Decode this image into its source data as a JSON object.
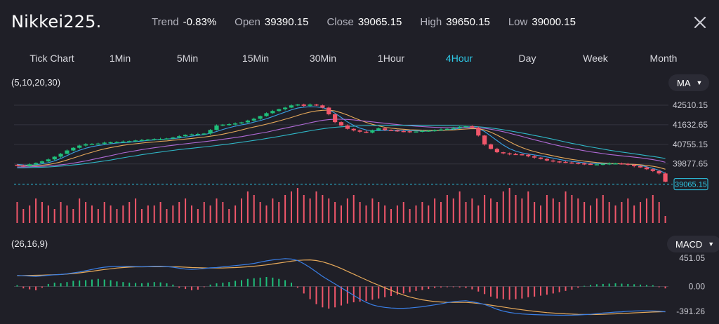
{
  "header": {
    "symbol": "Nikkei225.",
    "stats": [
      {
        "label": "Trend",
        "value": "-0.83%"
      },
      {
        "label": "Open",
        "value": "39390.15"
      },
      {
        "label": "Close",
        "value": "39065.15"
      },
      {
        "label": "High",
        "value": "39650.15"
      },
      {
        "label": "Low",
        "value": "39000.15"
      }
    ]
  },
  "tabs": [
    "Tick Chart",
    "1Min",
    "5Min",
    "15Min",
    "30Min",
    "1Hour",
    "4Hour",
    "Day",
    "Week",
    "Month"
  ],
  "active_tab": "4Hour",
  "ma_indicator": {
    "params": "(5,10,20,30)",
    "dropdown": "MA"
  },
  "macd_indicator": {
    "params": "(26,16,9)",
    "dropdown": "MACD"
  },
  "colors": {
    "up": "#1fbf7a",
    "down": "#f0566a",
    "accent": "#2ec8e6",
    "background": "#1f1f27"
  },
  "chart_data": [
    {
      "type": "candlestick",
      "price_axis_ticks": [
        "42510.15",
        "41632.65",
        "40755.15",
        "39877.65"
      ],
      "current_price_label": "39065.15",
      "ylim": [
        38800,
        43200
      ],
      "close_series": [
        39810,
        39780,
        39860,
        39920,
        39990,
        40080,
        40200,
        40330,
        40480,
        40600,
        40700,
        40760,
        40780,
        40790,
        40830,
        40850,
        40860,
        40880,
        40900,
        40930,
        40950,
        40970,
        40990,
        41000,
        41020,
        41060,
        41120,
        41180,
        41200,
        41220,
        41240,
        41400,
        41600,
        41640,
        41660,
        41690,
        41740,
        41820,
        41900,
        42020,
        42150,
        42250,
        42330,
        42400,
        42500,
        42540,
        42480,
        42540,
        42500,
        42400,
        42100,
        41750,
        41600,
        41450,
        41380,
        41320,
        41280,
        41390,
        41470,
        41400,
        41380,
        41350,
        41340,
        41320,
        41330,
        41360,
        41370,
        41390,
        41420,
        41450,
        41500,
        41540,
        41570,
        41500,
        41150,
        40750,
        40550,
        40400,
        40350,
        40320,
        40310,
        40290,
        40220,
        40160,
        40100,
        40030,
        39990,
        39970,
        39940,
        39920,
        39900,
        39880,
        39860,
        39860,
        39880,
        39900,
        39900,
        39880,
        39840,
        39780,
        39720,
        39640,
        39560,
        39450,
        39080
      ],
      "volume": [
        6,
        4,
        5,
        7,
        6,
        5,
        4,
        6,
        5,
        4,
        7,
        6,
        5,
        4,
        6,
        5,
        4,
        5,
        6,
        7,
        4,
        5,
        5,
        6,
        4,
        5,
        6,
        7,
        5,
        4,
        6,
        5,
        7,
        6,
        4,
        5,
        7,
        9,
        8,
        6,
        5,
        7,
        6,
        8,
        9,
        10,
        8,
        7,
        9,
        8,
        7,
        6,
        5,
        7,
        8,
        6,
        5,
        7,
        6,
        5,
        4,
        5,
        6,
        4,
        5,
        6,
        5,
        7,
        6,
        8,
        7,
        9,
        6,
        7,
        5,
        8,
        7,
        6,
        9,
        10,
        8,
        7,
        9,
        6,
        5,
        8,
        7,
        6,
        9,
        8,
        7,
        6,
        5,
        7,
        8,
        6,
        5,
        6,
        7,
        5,
        6,
        7,
        8,
        6,
        2
      ],
      "ma_lines": [
        {
          "name": "MA5",
          "color": "#3aa2e6",
          "values": [
            39860,
            39830,
            39820,
            39840,
            39880,
            39930,
            40010,
            40120,
            40250,
            40380,
            40490,
            40580,
            40650,
            40700,
            40740,
            40780,
            40810,
            40830,
            40850,
            40880,
            40900,
            40930,
            40950,
            40970,
            40990,
            41010,
            41040,
            41080,
            41120,
            41160,
            41190,
            41250,
            41330,
            41420,
            41500,
            41570,
            41630,
            41680,
            41750,
            41820,
            41900,
            42000,
            42100,
            42200,
            42300,
            42380,
            42420,
            42440,
            42430,
            42400,
            42320,
            42150,
            41960,
            41760,
            41600,
            41480,
            41400,
            41360,
            41370,
            41380,
            41390,
            41390,
            41380,
            41370,
            41360,
            41350,
            41350,
            41360,
            41380,
            41400,
            41430,
            41470,
            41510,
            41520,
            41470,
            41330,
            41130,
            40920,
            40720,
            40560,
            40450,
            40370,
            40320,
            40280,
            40240,
            40190,
            40140,
            40080,
            40030,
            39990,
            39960,
            39930,
            39910,
            39890,
            39880,
            39880,
            39880,
            39880,
            39870,
            39850,
            39810,
            39750,
            39680,
            39590,
            39460
          ]
        },
        {
          "name": "MA10",
          "color": "#e6a95a",
          "values": [
            39800,
            39790,
            39790,
            39800,
            39820,
            39850,
            39900,
            39970,
            40050,
            40140,
            40230,
            40320,
            40400,
            40480,
            40550,
            40610,
            40660,
            40710,
            40750,
            40780,
            40810,
            40840,
            40860,
            40890,
            40910,
            40940,
            40960,
            40990,
            41020,
            41050,
            41080,
            41120,
            41160,
            41210,
            41270,
            41330,
            41400,
            41470,
            41530,
            41590,
            41660,
            41730,
            41800,
            41880,
            41960,
            42050,
            42130,
            42200,
            42250,
            42280,
            42290,
            42250,
            42170,
            42070,
            41950,
            41840,
            41740,
            41650,
            41580,
            41520,
            41480,
            41450,
            41430,
            41410,
            41400,
            41390,
            41380,
            41380,
            41380,
            41390,
            41400,
            41420,
            41440,
            41460,
            41450,
            41400,
            41300,
            41170,
            41020,
            40870,
            40730,
            40610,
            40510,
            40430,
            40360,
            40300,
            40240,
            40180,
            40130,
            40080,
            40040,
            40000,
            39970,
            39940,
            39920,
            39900,
            39890,
            39880,
            39870,
            39860,
            39840,
            39810,
            39770,
            39720,
            39640
          ]
        },
        {
          "name": "MA20",
          "color": "#b06ad6",
          "values": [
            39740,
            39740,
            39750,
            39760,
            39770,
            39790,
            39810,
            39840,
            39870,
            39910,
            39960,
            40010,
            40070,
            40130,
            40190,
            40250,
            40310,
            40370,
            40420,
            40470,
            40520,
            40560,
            40600,
            40640,
            40680,
            40710,
            40750,
            40780,
            40810,
            40840,
            40870,
            40910,
            40940,
            40980,
            41020,
            41060,
            41100,
            41150,
            41200,
            41250,
            41300,
            41360,
            41420,
            41480,
            41540,
            41600,
            41660,
            41720,
            41780,
            41830,
            41860,
            41880,
            41880,
            41870,
            41850,
            41820,
            41790,
            41760,
            41730,
            41700,
            41670,
            41640,
            41610,
            41590,
            41570,
            41550,
            41530,
            41520,
            41510,
            41500,
            41500,
            41500,
            41500,
            41500,
            41490,
            41470,
            41430,
            41380,
            41320,
            41250,
            41180,
            41110,
            41030,
            40960,
            40890,
            40820,
            40750,
            40690,
            40630,
            40570,
            40520,
            40470,
            40420,
            40380,
            40340,
            40300,
            40270,
            40240,
            40210,
            40180,
            40150,
            40110,
            40070,
            40020,
            39950
          ]
        },
        {
          "name": "MA30",
          "color": "#2fb8c8",
          "values": [
            39700,
            39700,
            39710,
            39720,
            39730,
            39740,
            39760,
            39780,
            39800,
            39830,
            39860,
            39890,
            39930,
            39970,
            40010,
            40050,
            40100,
            40150,
            40200,
            40240,
            40290,
            40330,
            40370,
            40410,
            40450,
            40480,
            40520,
            40550,
            40580,
            40610,
            40640,
            40670,
            40700,
            40740,
            40770,
            40810,
            40850,
            40890,
            40930,
            40970,
            41020,
            41060,
            41110,
            41160,
            41210,
            41260,
            41310,
            41360,
            41410,
            41450,
            41490,
            41520,
            41540,
            41560,
            41570,
            41580,
            41590,
            41600,
            41600,
            41610,
            41610,
            41610,
            41610,
            41610,
            41610,
            41610,
            41600,
            41600,
            41600,
            41590,
            41590,
            41580,
            41570,
            41560,
            41540,
            41520,
            41490,
            41450,
            41410,
            41360,
            41310,
            41260,
            41210,
            41150,
            41100,
            41040,
            40980,
            40920,
            40860,
            40800,
            40750,
            40690,
            40640,
            40590,
            40540,
            40490,
            40450,
            40410,
            40370,
            40330,
            40290,
            40250,
            40210,
            40170,
            40120
          ]
        }
      ]
    },
    {
      "type": "macd",
      "axis_ticks": [
        "451.05",
        "0.00",
        "-391.26"
      ],
      "ylim": [
        -460,
        560
      ],
      "macd": [
        175,
        170,
        165,
        160,
        168,
        178,
        185,
        190,
        200,
        215,
        230,
        250,
        270,
        290,
        305,
        315,
        320,
        320,
        318,
        315,
        312,
        315,
        320,
        320,
        315,
        305,
        290,
        275,
        270,
        275,
        285,
        295,
        300,
        310,
        320,
        330,
        340,
        350,
        365,
        385,
        405,
        420,
        430,
        440,
        435,
        410,
        360,
        300,
        230,
        160,
        100,
        40,
        -20,
        -80,
        -140,
        -200,
        -250,
        -290,
        -315,
        -330,
        -340,
        -345,
        -345,
        -340,
        -330,
        -320,
        -305,
        -290,
        -275,
        -255,
        -240,
        -230,
        -225,
        -240,
        -260,
        -285,
        -320,
        -360,
        -390,
        -410,
        -425,
        -435,
        -440,
        -445,
        -448,
        -450,
        -452,
        -455,
        -455,
        -453,
        -450,
        -445,
        -440,
        -430,
        -420,
        -412,
        -405,
        -400,
        -392,
        -388,
        -385,
        -385,
        -386,
        -390,
        -400
      ],
      "signal": [
        170,
        172,
        175,
        178,
        180,
        183,
        186,
        190,
        196,
        205,
        215,
        228,
        240,
        255,
        268,
        280,
        292,
        300,
        306,
        310,
        311,
        312,
        313,
        314,
        313,
        312,
        310,
        305,
        300,
        297,
        294,
        292,
        292,
        293,
        296,
        300,
        305,
        312,
        320,
        330,
        342,
        356,
        370,
        385,
        400,
        412,
        418,
        420,
        410,
        390,
        360,
        325,
        285,
        240,
        195,
        150,
        105,
        60,
        20,
        -20,
        -60,
        -100,
        -135,
        -165,
        -190,
        -210,
        -225,
        -238,
        -245,
        -250,
        -252,
        -252,
        -252,
        -258,
        -268,
        -280,
        -295,
        -310,
        -325,
        -340,
        -355,
        -368,
        -380,
        -392,
        -402,
        -412,
        -420,
        -427,
        -432,
        -436,
        -440,
        -442,
        -443,
        -442,
        -440,
        -436,
        -432,
        -427,
        -422,
        -417,
        -412,
        -408,
        -404,
        -400,
        -398
      ],
      "histogram": [
        20,
        -30,
        -45,
        -60,
        -20,
        40,
        60,
        50,
        70,
        90,
        95,
        100,
        110,
        120,
        110,
        100,
        80,
        70,
        60,
        55,
        50,
        60,
        70,
        65,
        50,
        30,
        -20,
        -40,
        -60,
        -50,
        -10,
        30,
        50,
        60,
        70,
        90,
        100,
        120,
        130,
        140,
        150,
        140,
        120,
        100,
        60,
        -20,
        -110,
        -200,
        -280,
        -330,
        -350,
        -330,
        -300,
        -270,
        -250,
        -240,
        -230,
        -210,
        -190,
        -170,
        -150,
        -130,
        -110,
        -90,
        -70,
        -55,
        -40,
        -25,
        -15,
        -10,
        -8,
        -15,
        -25,
        -45,
        -80,
        -120,
        -160,
        -190,
        -200,
        -210,
        -200,
        -190,
        -170,
        -160,
        -145,
        -130,
        -110,
        -90,
        -70,
        -50,
        -20,
        10,
        25,
        35,
        40,
        45,
        50,
        45,
        40,
        35,
        30,
        25,
        20,
        -10,
        -30
      ]
    }
  ]
}
